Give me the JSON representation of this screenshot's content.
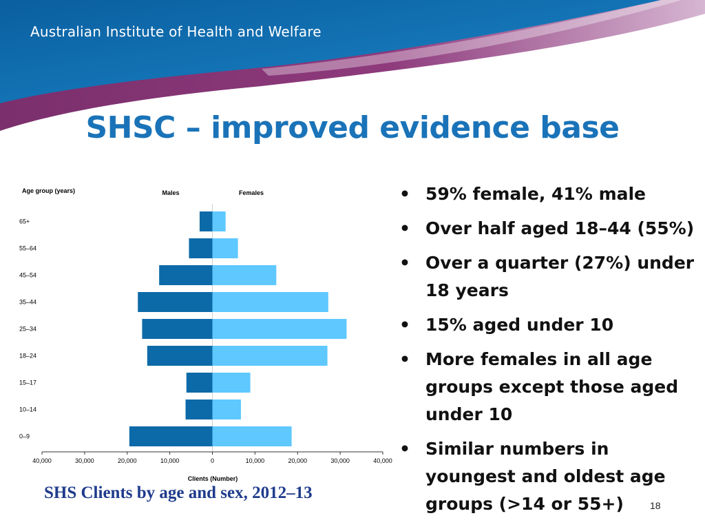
{
  "header": {
    "org_name": "Australian Institute of Health and Welfare",
    "colors": {
      "blue": "#0d6cb0",
      "purple": "#7b2f6c",
      "light": "#c9a8c6"
    }
  },
  "slide": {
    "title": "SHSC – improved evidence base",
    "caption": "SHS Clients by age and sex, 2012–13",
    "page_number": "18"
  },
  "bullets": [
    "59%  female, 41% male",
    "Over half aged 18–44 (55%)",
    "Over a quarter (27%) under 18 years",
    "15% aged under 10",
    "More females in all age groups except those aged under 10",
    "Similar numbers in youngest and oldest age groups (>14 or 55+)"
  ],
  "bullet_glyph": "•",
  "chart_data": {
    "type": "bar",
    "orientation": "horizontal-population-pyramid",
    "y_axis_title": "Age group (years)",
    "xlabel": "Clients (Number)",
    "categories": [
      "65+",
      "55–64",
      "45–54",
      "35–44",
      "25–34",
      "18–24",
      "15–17",
      "10–14",
      "0–9"
    ],
    "series": [
      {
        "name": "Males",
        "values": [
          3000,
          5500,
          12500,
          17500,
          16500,
          15300,
          6100,
          6300,
          19500
        ],
        "color": "#0d6aa8"
      },
      {
        "name": "Females",
        "values": [
          3100,
          6000,
          15000,
          27200,
          31500,
          27000,
          8900,
          6700,
          18600
        ],
        "color": "#5ec8ff"
      }
    ],
    "xlim": [
      -40000,
      40000
    ],
    "x_ticks": [
      -40000,
      -30000,
      -20000,
      -10000,
      0,
      10000,
      20000,
      30000,
      40000
    ],
    "x_tick_labels": [
      "40,000",
      "30,000",
      "20,000",
      "10,000",
      "0",
      "10,000",
      "20,000",
      "30,000",
      "40,000"
    ],
    "grid": false
  }
}
